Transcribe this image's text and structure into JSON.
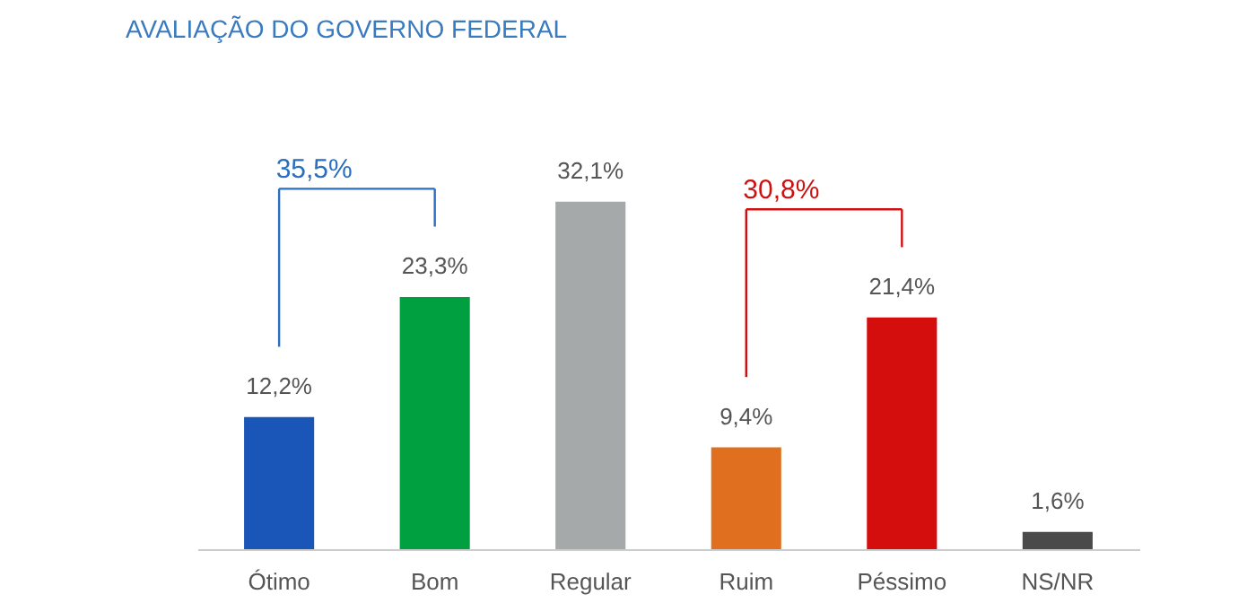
{
  "chart_data": {
    "type": "bar",
    "title": "AVALIAÇÃO DO GOVERNO FEDERAL",
    "categories": [
      "Ótimo",
      "Bom",
      "Regular",
      "Ruim",
      "Péssimo",
      "NS/NR"
    ],
    "values": [
      12.2,
      23.3,
      32.1,
      9.4,
      21.4,
      1.6
    ],
    "colors": [
      "#1a56b8",
      "#00a040",
      "#a6a9a9",
      "#e07020",
      "#d40d0d",
      "#4a4a4a"
    ],
    "value_labels": [
      "12,2%",
      "23,3%",
      "32,1%",
      "9,4%",
      "21,4%",
      "1,6%"
    ],
    "annotations": [
      "35,5%",
      "30,8%"
    ],
    "tick_labels": "x",
    "grid": false
  }
}
